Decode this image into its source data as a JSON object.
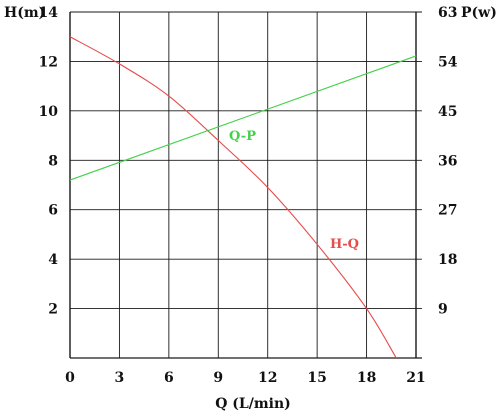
{
  "chart_data": {
    "type": "line",
    "title": "",
    "xlabel": "Q (L/min)",
    "ylabel_left": "H(m)",
    "ylabel_right": "P(w)",
    "x_range": [
      0,
      21
    ],
    "x_ticks": [
      0,
      3,
      6,
      9,
      12,
      15,
      18,
      21
    ],
    "y_left_range": [
      0,
      14
    ],
    "y_left_ticks": [
      2,
      4,
      6,
      8,
      10,
      12,
      14
    ],
    "y_right_range": [
      0,
      63
    ],
    "y_right_ticks": [
      9,
      18,
      27,
      36,
      45,
      54,
      63
    ],
    "grid": true,
    "legend": "none",
    "series": [
      {
        "name": "H-Q",
        "axis": "left",
        "color": "#e84a4a",
        "x": [
          0,
          3,
          6,
          9,
          12,
          15,
          18,
          19.8
        ],
        "y": [
          13.0,
          11.9,
          10.6,
          8.8,
          6.9,
          4.6,
          2.0,
          0.0
        ]
      },
      {
        "name": "Q-P",
        "axis": "right",
        "color": "#44d04a",
        "x": [
          0,
          21
        ],
        "y": [
          32.4,
          55.0
        ]
      }
    ]
  }
}
